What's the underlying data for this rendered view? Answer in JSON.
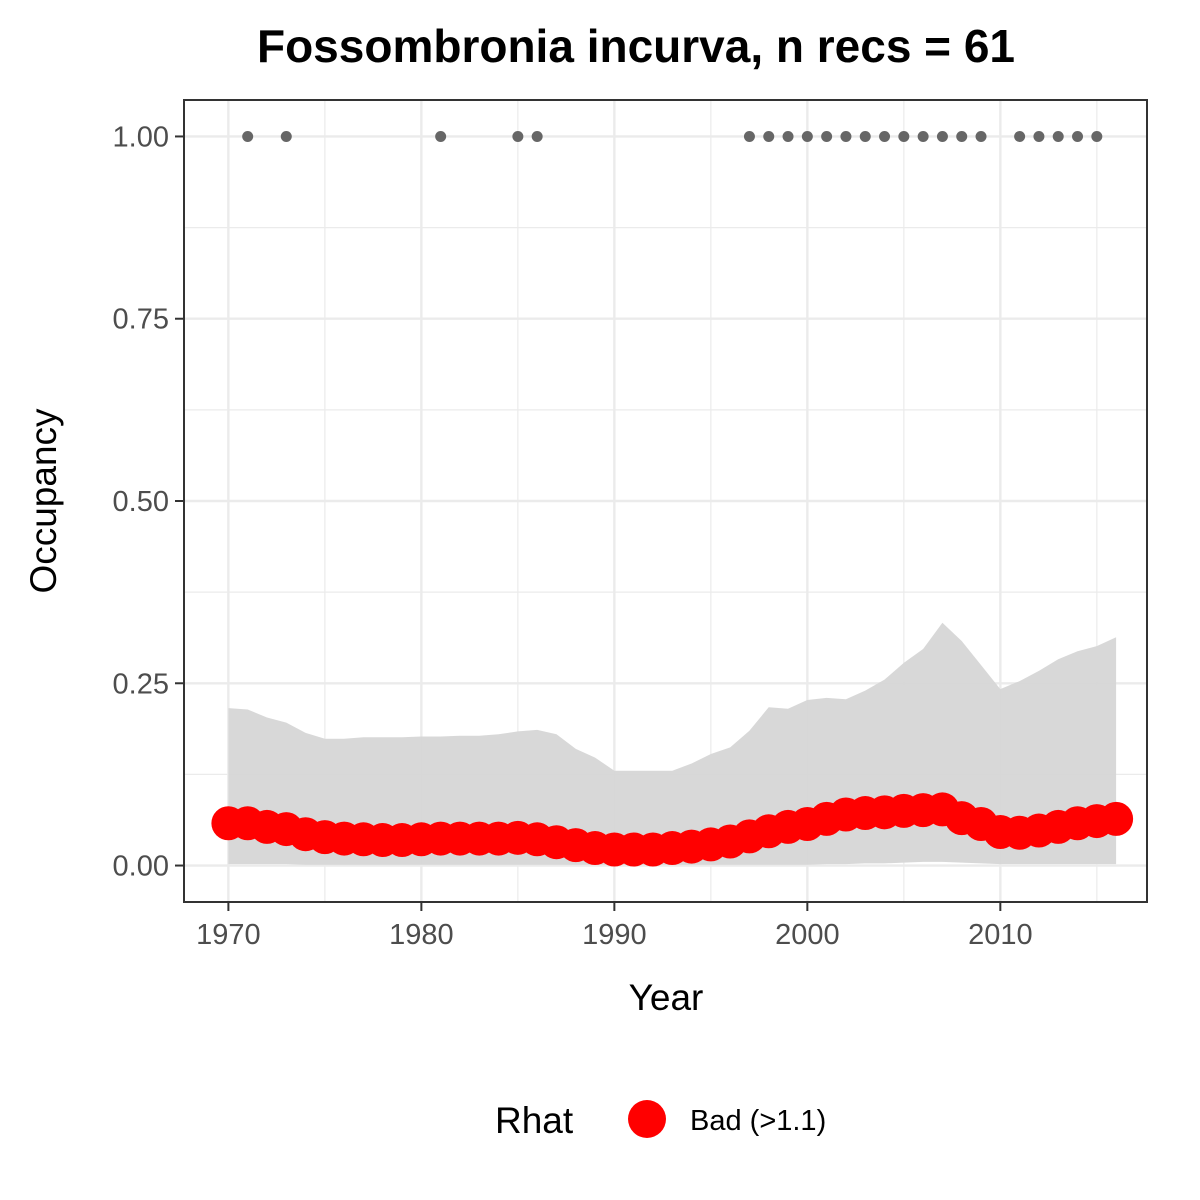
{
  "chart_data": {
    "type": "line",
    "title": "Fossombronia incurva, n recs = 61",
    "xlabel": "Year",
    "ylabel": "Occupancy",
    "xlim": [
      1967.7,
      2017.6
    ],
    "ylim": [
      -0.05,
      1.05
    ],
    "x_ticks": [
      1970,
      1980,
      1990,
      2000,
      2010
    ],
    "x_minor_ticks": [
      1975,
      1985,
      1995,
      2005,
      2015
    ],
    "y_ticks": [
      0,
      0.25,
      0.5,
      0.75,
      1.0
    ],
    "y_tick_labels": [
      "0.00",
      "0.25",
      "0.50",
      "0.75",
      "1.00"
    ],
    "y_minor_ticks": [
      0.125,
      0.375,
      0.625,
      0.875
    ],
    "grid": true,
    "colors": {
      "line": "#ff0000",
      "ribbon": "#d6d6d6",
      "records": "#666666",
      "grid": "#ebebeb",
      "panel_border": "#333333"
    },
    "years": [
      1970,
      1971,
      1972,
      1973,
      1974,
      1975,
      1976,
      1977,
      1978,
      1979,
      1980,
      1981,
      1982,
      1983,
      1984,
      1985,
      1986,
      1987,
      1988,
      1989,
      1990,
      1991,
      1992,
      1993,
      1994,
      1995,
      1996,
      1997,
      1998,
      1999,
      2000,
      2001,
      2002,
      2003,
      2004,
      2005,
      2006,
      2007,
      2008,
      2009,
      2010,
      2011,
      2012,
      2013,
      2014,
      2015,
      2016
    ],
    "occupancy_mean": [
      0.058,
      0.058,
      0.053,
      0.05,
      0.043,
      0.039,
      0.037,
      0.036,
      0.035,
      0.035,
      0.036,
      0.037,
      0.037,
      0.037,
      0.037,
      0.038,
      0.036,
      0.032,
      0.028,
      0.024,
      0.022,
      0.022,
      0.022,
      0.024,
      0.026,
      0.029,
      0.033,
      0.04,
      0.047,
      0.053,
      0.057,
      0.064,
      0.07,
      0.072,
      0.073,
      0.075,
      0.076,
      0.077,
      0.065,
      0.057,
      0.046,
      0.045,
      0.048,
      0.053,
      0.058,
      0.061,
      0.064
    ],
    "ribbon_upper": [
      0.216,
      0.214,
      0.203,
      0.196,
      0.182,
      0.174,
      0.174,
      0.176,
      0.176,
      0.176,
      0.177,
      0.177,
      0.178,
      0.178,
      0.18,
      0.184,
      0.186,
      0.18,
      0.16,
      0.148,
      0.13,
      0.13,
      0.13,
      0.13,
      0.14,
      0.153,
      0.162,
      0.185,
      0.217,
      0.215,
      0.227,
      0.23,
      0.228,
      0.24,
      0.255,
      0.278,
      0.297,
      0.333,
      0.308,
      0.275,
      0.242,
      0.253,
      0.267,
      0.283,
      0.294,
      0.301,
      0.313
    ],
    "ribbon_lower": [
      0.002,
      0.002,
      0.002,
      0.002,
      0.001,
      0.001,
      0.001,
      0.001,
      0.001,
      0.001,
      0.001,
      0.001,
      0.001,
      0.001,
      0.001,
      0.001,
      0.001,
      0.001,
      0.001,
      0.001,
      0.001,
      0.001,
      0.001,
      0.001,
      0.001,
      0.001,
      0.001,
      0.001,
      0.001,
      0.001,
      0.001,
      0.002,
      0.002,
      0.003,
      0.003,
      0.004,
      0.005,
      0.005,
      0.004,
      0.003,
      0.002,
      0.002,
      0.002,
      0.002,
      0.002,
      0.002,
      0.002
    ],
    "record_years": [
      1971,
      1973,
      1981,
      1985,
      1986,
      1997,
      1998,
      1999,
      2000,
      2001,
      2002,
      2003,
      2004,
      2005,
      2006,
      2007,
      2008,
      2009,
      2011,
      2012,
      2013,
      2014,
      2015
    ],
    "record_value": 1.0,
    "series": [
      {
        "name": "Bad (>1.1)",
        "color": "#ff0000"
      }
    ],
    "legend": {
      "title": "Rhat",
      "position": "bottom",
      "entries": [
        {
          "label": "Bad (>1.1)",
          "color": "#ff0000"
        }
      ]
    }
  }
}
